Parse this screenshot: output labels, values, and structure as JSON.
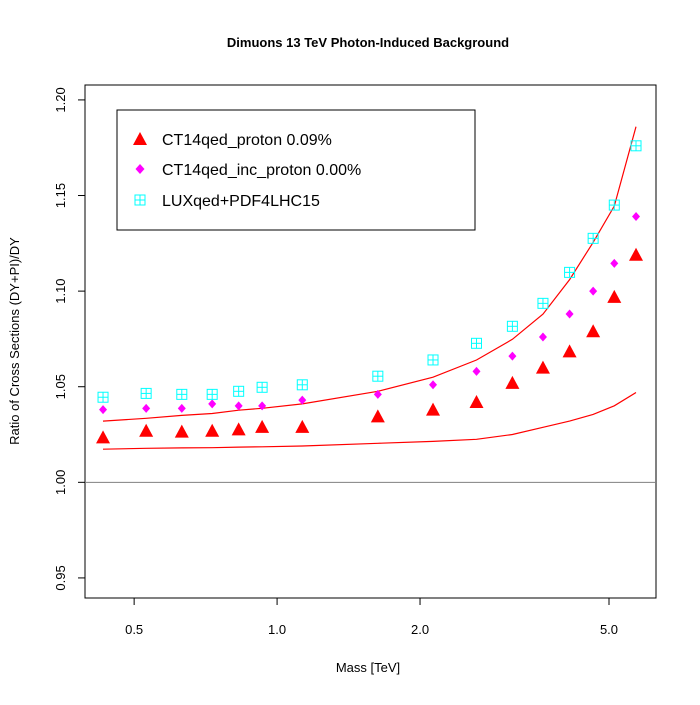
{
  "chart_data": {
    "type": "scatter",
    "title": "Dimuons 13 TeV Photon-Induced Background",
    "xlabel": "Mass [TeV]",
    "ylabel": "Ratio of Cross Sections (DY+PI)/DY",
    "x_scale": "log",
    "xlim": [
      0.394,
      6.28
    ],
    "ylim": [
      0.9395,
      1.2078
    ],
    "x_ticks": [
      0.5,
      1.0,
      2.0,
      5.0
    ],
    "x_tick_labels": [
      "0.5",
      "1.0",
      "2.0",
      "5.0"
    ],
    "y_ticks": [
      0.95,
      1.0,
      1.05,
      1.1,
      1.15,
      1.2
    ],
    "y_tick_labels": [
      "0.95",
      "1.00",
      "1.05",
      "1.10",
      "1.15",
      "1.20"
    ],
    "grid": false,
    "legend_position": "top-left",
    "reference_line": {
      "y": 1.0,
      "color": "#808080"
    },
    "x": [
      0.43,
      0.53,
      0.63,
      0.73,
      0.83,
      0.93,
      1.13,
      1.63,
      2.13,
      2.63,
      3.13,
      3.63,
      4.13,
      4.63,
      5.13,
      5.7
    ],
    "series": [
      {
        "name": "CT14qed_proton 0.09%",
        "marker": "triangle",
        "color": "#ff0000",
        "values": [
          1.0235,
          1.027,
          1.0265,
          1.027,
          1.0277,
          1.029,
          1.029,
          1.0345,
          1.038,
          1.042,
          1.052,
          1.06,
          1.0685,
          1.079,
          1.097,
          1.119
        ]
      },
      {
        "name": "CT14qed_inc_proton 0.00%",
        "marker": "diamond",
        "color": "#ff00ff",
        "values": [
          1.038,
          1.0387,
          1.0387,
          1.041,
          1.04,
          1.04,
          1.043,
          1.046,
          1.051,
          1.058,
          1.066,
          1.076,
          1.088,
          1.1,
          1.1145,
          1.139
        ]
      },
      {
        "name": "LUXqed+PDF4LHC15",
        "marker": "boxplus",
        "color": "#00ffff",
        "values": [
          1.0445,
          1.0465,
          1.046,
          1.046,
          1.0476,
          1.0497,
          1.051,
          1.0555,
          1.064,
          1.0727,
          1.0816,
          1.0936,
          1.1098,
          1.1276,
          1.145,
          1.176
        ]
      }
    ],
    "bands": [
      {
        "kind": "upper",
        "color": "#ff0000",
        "values": [
          1.032,
          1.0335,
          1.035,
          1.036,
          1.0377,
          1.0387,
          1.041,
          1.0476,
          1.055,
          1.064,
          1.0748,
          1.088,
          1.106,
          1.1255,
          1.1445,
          1.186
        ]
      },
      {
        "kind": "lower",
        "color": "#ff0000",
        "values": [
          1.0173,
          1.0178,
          1.018,
          1.0181,
          1.0184,
          1.0186,
          1.019,
          1.0204,
          1.0214,
          1.0225,
          1.025,
          1.0288,
          1.032,
          1.0355,
          1.04,
          1.047
        ]
      }
    ]
  }
}
